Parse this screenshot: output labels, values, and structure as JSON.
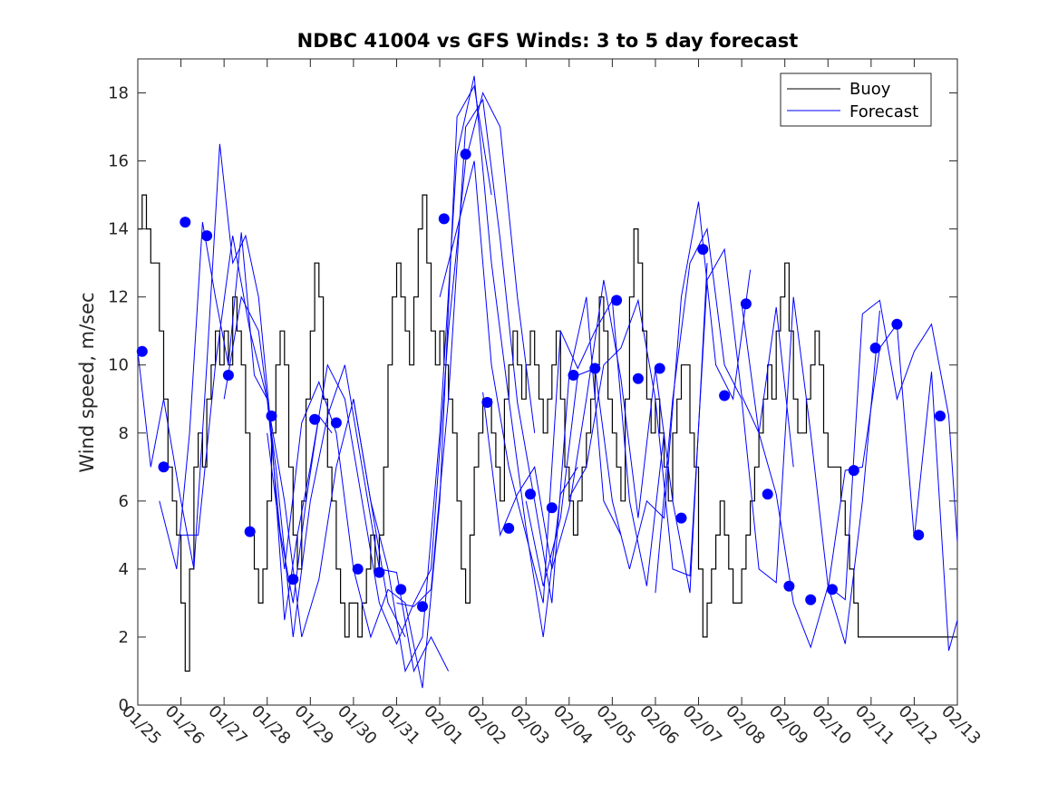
{
  "chart_data": {
    "type": "line",
    "title": "NDBC 41004 vs GFS Winds: 3 to 5 day forecast",
    "xlabel": "",
    "ylabel": "Wind speed, m/sec",
    "xlim_days": [
      0,
      19
    ],
    "ylim": [
      0,
      19
    ],
    "yticks": [
      0,
      2,
      4,
      6,
      8,
      10,
      12,
      14,
      16,
      18
    ],
    "xtick_labels": [
      "01/25",
      "01/26",
      "01/27",
      "01/28",
      "01/29",
      "01/30",
      "01/31",
      "02/01",
      "02/02",
      "02/03",
      "02/04",
      "02/05",
      "02/06",
      "02/07",
      "02/08",
      "02/09",
      "02/10",
      "02/11",
      "02/12",
      "02/13"
    ],
    "grid": false,
    "legend": {
      "position": "top-right",
      "entries": [
        "Buoy",
        "Forecast"
      ]
    },
    "colors": {
      "buoy": "#000000",
      "forecast": "#0000ff",
      "axis": "#262626"
    },
    "buoy": {
      "name": "Buoy",
      "x": [
        0,
        0.1,
        0.2,
        0.3,
        0.4,
        0.5,
        0.6,
        0.7,
        0.8,
        0.9,
        1.0,
        1.1,
        1.2,
        1.3,
        1.4,
        1.5,
        1.6,
        1.7,
        1.8,
        1.9,
        2.0,
        2.1,
        2.2,
        2.3,
        2.4,
        2.5,
        2.6,
        2.7,
        2.8,
        2.9,
        3.0,
        3.1,
        3.2,
        3.3,
        3.4,
        3.5,
        3.6,
        3.7,
        3.8,
        3.9,
        4.0,
        4.1,
        4.2,
        4.3,
        4.4,
        4.5,
        4.6,
        4.7,
        4.8,
        4.9,
        5.0,
        5.1,
        5.2,
        5.3,
        5.4,
        5.5,
        5.6,
        5.7,
        5.8,
        5.9,
        6.0,
        6.1,
        6.2,
        6.3,
        6.4,
        6.5,
        6.6,
        6.7,
        6.8,
        6.9,
        7.0,
        7.1,
        7.2,
        7.3,
        7.4,
        7.5,
        7.6,
        7.7,
        7.8,
        7.9,
        8.0,
        8.1,
        8.2,
        8.3,
        8.4,
        8.5,
        8.6,
        8.7,
        8.8,
        8.9,
        9.0,
        9.1,
        9.2,
        9.3,
        9.4,
        9.5,
        9.6,
        9.7,
        9.8,
        9.9,
        10.0,
        10.1,
        10.2,
        10.3,
        10.4,
        10.5,
        10.6,
        10.7,
        10.8,
        10.9,
        11.0,
        11.1,
        11.2,
        11.3,
        11.4,
        11.5,
        11.6,
        11.7,
        11.8,
        11.9,
        12.0,
        12.1,
        12.2,
        12.3,
        12.4,
        12.5,
        12.6,
        12.7,
        12.8,
        12.9,
        13.0,
        13.1,
        13.2,
        13.3,
        13.4,
        13.5,
        13.6,
        13.7,
        13.8,
        13.9,
        14.0,
        14.1,
        14.2,
        14.3,
        14.4,
        14.5,
        14.6,
        14.7,
        14.8,
        14.9,
        15.0,
        15.1,
        15.2,
        15.3,
        15.4,
        15.5,
        15.6,
        15.7,
        15.8,
        15.9,
        16.0,
        16.1,
        16.2,
        16.3,
        16.4,
        16.5,
        16.6,
        16.7,
        16.8,
        16.9,
        17.0,
        17.1,
        17.2,
        17.3,
        17.4,
        17.5,
        17.6,
        17.7,
        17.8,
        17.9,
        18.0,
        18.1,
        18.2,
        18.3,
        18.4,
        18.5,
        18.6,
        18.7,
        18.8,
        18.9,
        19.0
      ],
      "y": [
        14,
        15,
        14,
        13,
        13,
        11,
        9,
        7,
        6,
        5,
        3,
        1,
        4,
        7,
        8,
        7,
        9,
        10,
        11,
        10,
        11,
        10,
        12,
        11,
        10,
        8,
        5,
        4,
        3,
        4,
        6,
        8,
        10,
        11,
        10,
        7,
        5,
        4,
        6,
        9,
        11,
        13,
        12,
        9,
        7,
        6,
        4,
        3,
        2,
        3,
        3,
        2,
        3,
        4,
        5,
        4,
        5,
        7,
        10,
        12,
        13,
        12,
        11,
        10,
        12,
        14,
        15,
        13,
        11,
        10,
        11,
        10,
        9,
        8,
        6,
        4,
        3,
        5,
        7,
        8,
        9,
        9,
        8,
        7,
        6,
        9,
        10,
        11,
        10,
        9,
        10,
        11,
        10,
        9,
        8,
        9,
        10,
        11,
        9,
        7,
        6,
        5,
        6,
        7,
        8,
        9,
        10,
        12,
        11,
        9,
        8,
        7,
        6,
        9,
        12,
        14,
        13,
        11,
        9,
        8,
        9,
        8,
        7,
        6,
        8,
        9,
        10,
        10,
        8,
        7,
        4,
        2,
        3,
        4,
        5,
        6,
        5,
        4,
        3,
        3,
        4,
        5,
        6,
        7,
        8,
        9,
        10,
        9,
        11,
        12,
        13,
        11,
        9,
        8,
        8,
        9,
        10,
        11,
        10,
        8,
        7,
        7,
        7,
        6,
        5,
        4,
        3,
        2,
        2,
        2,
        2,
        2,
        2,
        2,
        2,
        2,
        2,
        2,
        2,
        2,
        2,
        2,
        2,
        2,
        2,
        2,
        2,
        2,
        2,
        2,
        2
      ]
    },
    "forecast_series": [
      {
        "x": [
          0,
          0.3,
          0.6,
          1.0,
          1.3,
          1.6,
          1.9,
          2.2,
          2.5,
          2.8,
          3.1,
          3.4,
          3.7,
          4.0
        ],
        "y": [
          10.4,
          7,
          9,
          6,
          4,
          10,
          16.5,
          13,
          13.8,
          12,
          8,
          2.5,
          5,
          7
        ]
      },
      {
        "x": [
          0.5,
          0.9,
          1.2,
          1.5,
          1.8,
          2.1,
          2.4,
          2.7,
          3.0,
          3.3,
          3.6,
          3.9,
          4.2,
          4.5
        ],
        "y": [
          6,
          4,
          8,
          14.2,
          12,
          10,
          13.9,
          9.7,
          9,
          5.1,
          3,
          6,
          8.5,
          8
        ]
      },
      {
        "x": [
          1.0,
          1.4,
          1.8,
          2.2,
          2.6,
          3.0,
          3.4,
          3.8,
          4.2,
          4.6,
          5.0,
          5.4,
          5.8,
          6.2
        ],
        "y": [
          5,
          5,
          10,
          13.8,
          11,
          9,
          6,
          2,
          3.7,
          7,
          9,
          6,
          3,
          2
        ]
      },
      {
        "x": [
          2.0,
          2.4,
          2.8,
          3.2,
          3.6,
          4.0,
          4.4,
          4.8,
          5.2,
          5.6,
          6.0,
          6.4,
          6.8,
          7.2
        ],
        "y": [
          9,
          12,
          11,
          7,
          2,
          6,
          8.5,
          10,
          7,
          4,
          3.9,
          1,
          2,
          1
        ]
      },
      {
        "x": [
          3.0,
          3.4,
          3.8,
          4.2,
          4.6,
          5.0,
          5.4,
          5.8,
          6.2,
          6.6,
          7.0,
          7.4,
          7.8,
          8.2
        ],
        "y": [
          8,
          4,
          8.3,
          9.5,
          8,
          4,
          2,
          3.4,
          3,
          0.5,
          6,
          17.3,
          18.2,
          15
        ]
      },
      {
        "x": [
          4.0,
          4.4,
          4.8,
          5.2,
          5.6,
          6.0,
          6.4,
          6.8,
          7.2,
          7.6,
          8.0,
          8.4,
          8.8,
          9.2
        ],
        "y": [
          7,
          10,
          9,
          6,
          3,
          1.8,
          3,
          4,
          11,
          16,
          18,
          17,
          12,
          8
        ]
      },
      {
        "x": [
          5.0,
          5.4,
          5.8,
          6.2,
          6.6,
          7.0,
          7.4,
          7.8,
          8.2,
          8.6,
          9.0,
          9.4,
          9.8,
          10.2
        ],
        "y": [
          9,
          6,
          4,
          1,
          2,
          8,
          16.2,
          18.5,
          13,
          9,
          5.2,
          2,
          6.2,
          7
        ]
      },
      {
        "x": [
          6.0,
          6.4,
          6.8,
          7.2,
          7.6,
          8.0,
          8.4,
          8.8,
          9.2,
          9.6,
          10.0,
          10.4,
          10.8,
          11.2
        ],
        "y": [
          3,
          2.9,
          3.4,
          9,
          17,
          17.8,
          13.7,
          8.9,
          6,
          3,
          9.7,
          12,
          6,
          5
        ]
      },
      {
        "x": [
          7.0,
          7.4,
          7.8,
          8.2,
          8.6,
          9.0,
          9.4,
          9.8,
          10.2,
          10.6,
          11.0,
          11.4,
          11.8,
          12.2
        ],
        "y": [
          12,
          14,
          16,
          10,
          7,
          5,
          3,
          11,
          9.9,
          11,
          11.9,
          6,
          3.5,
          8
        ]
      },
      {
        "x": [
          8.0,
          8.4,
          8.8,
          9.2,
          9.6,
          10.0,
          10.4,
          10.8,
          11.2,
          11.6,
          12.0,
          12.4,
          12.8,
          13.2
        ],
        "y": [
          9.2,
          5,
          6.2,
          7,
          4,
          5.8,
          9,
          12.5,
          9.6,
          5.5,
          9.9,
          6,
          3.3,
          13
        ]
      },
      {
        "x": [
          9.0,
          9.4,
          9.8,
          10.2,
          10.6,
          11.0,
          11.4,
          11.8,
          12.2,
          12.6,
          13.0,
          13.4,
          13.8,
          14.2
        ],
        "y": [
          6,
          3.5,
          5.5,
          9.7,
          9.9,
          6,
          4,
          6,
          5.5,
          12,
          14.8,
          10,
          9,
          12.8
        ]
      },
      {
        "x": [
          10.0,
          10.4,
          10.8,
          11.2,
          11.6,
          12.0,
          12.4,
          12.8,
          13.2,
          13.6,
          14.0,
          14.4,
          14.8,
          15.2
        ],
        "y": [
          6.1,
          7,
          10,
          10.5,
          11.9,
          9,
          4,
          3.8,
          12.5,
          13.4,
          9.1,
          8,
          11.7,
          7
        ]
      },
      {
        "x": [
          12.0,
          12.4,
          12.8,
          13.2,
          13.6,
          14.0,
          14.4,
          14.8,
          15.2,
          15.6,
          16.0,
          16.4,
          16.8,
          17.2
        ],
        "y": [
          3.3,
          9,
          13,
          14,
          10,
          9,
          4,
          3.6,
          12,
          8,
          3.5,
          1.8,
          6,
          11.6
        ]
      },
      {
        "x": [
          14.0,
          14.4,
          14.8,
          15.2,
          15.6,
          16.0,
          16.4,
          16.8,
          17.2,
          17.6,
          18.0,
          18.4,
          18.8,
          19.0
        ],
        "y": [
          11.8,
          8,
          6.2,
          3,
          1.7,
          3.5,
          3.1,
          11.5,
          11.9,
          9,
          10.4,
          11.2,
          8.5,
          4.8
        ]
      },
      {
        "x": [
          16.0,
          16.4,
          16.8,
          17.2,
          17.6,
          18.0,
          18.4,
          18.8,
          19.0
        ],
        "y": [
          3.4,
          6.9,
          7,
          10.5,
          11.2,
          4.9,
          9.8,
          1.6,
          2.5
        ]
      }
    ],
    "markers": {
      "name": "Forecast points",
      "x": [
        0.1,
        0.6,
        1.1,
        1.6,
        2.1,
        2.6,
        3.1,
        3.6,
        4.1,
        4.6,
        5.1,
        5.6,
        6.1,
        6.6,
        7.1,
        7.6,
        8.1,
        8.6,
        9.1,
        9.6,
        10.1,
        10.6,
        11.1,
        11.6,
        12.1,
        12.6,
        13.1,
        13.6,
        14.1,
        14.6,
        15.1,
        15.6,
        16.1,
        16.6,
        17.1,
        17.6,
        18.1,
        18.6
      ],
      "y": [
        10.4,
        7.0,
        14.2,
        13.8,
        9.7,
        5.1,
        8.5,
        3.7,
        8.4,
        8.3,
        4.0,
        3.9,
        3.4,
        2.9,
        14.3,
        16.2,
        8.9,
        5.2,
        6.2,
        5.8,
        9.7,
        9.9,
        11.9,
        9.6,
        9.9,
        5.5,
        13.4,
        9.1,
        11.8,
        6.2,
        3.5,
        3.1,
        3.4,
        6.9,
        10.5,
        11.2,
        5.0,
        8.5
      ]
    }
  }
}
